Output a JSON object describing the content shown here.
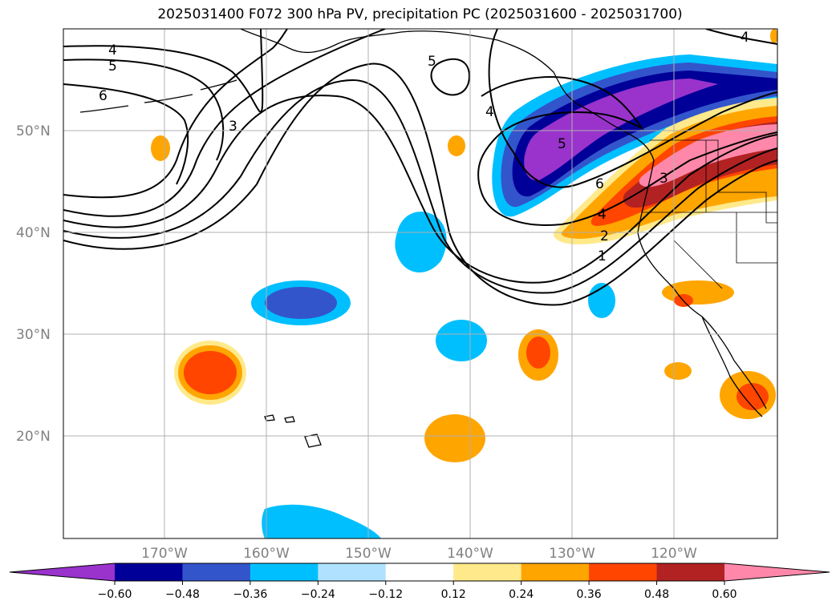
{
  "title": "2025031400 F072 300 hPa PV, precipitation PC (2025031600 - 2025031700)",
  "lat_labels": [
    {
      "text": "50°N",
      "lat": 50
    },
    {
      "text": "40°N",
      "lat": 40
    },
    {
      "text": "30°N",
      "lat": 30
    },
    {
      "text": "20°N",
      "lat": 20
    }
  ],
  "lon_labels": [
    {
      "text": "170°W",
      "lon": -170
    },
    {
      "text": "160°W",
      "lon": -160
    },
    {
      "text": "150°W",
      "lon": -150
    },
    {
      "text": "140°W",
      "lon": -140
    },
    {
      "text": "130°W",
      "lon": -130
    },
    {
      "text": "120°W",
      "lon": -120
    }
  ],
  "colorbar": {
    "colors": [
      "#9933cc",
      "#000099",
      "#3355cc",
      "#00bfff",
      "#b0e2ff",
      "#ffffff",
      "#ffe98a",
      "#ffa500",
      "#ff4500",
      "#b22222",
      "#ff88aa"
    ],
    "tick_labels": [
      "−0.60",
      "−0.48",
      "−0.36",
      "−0.24",
      "−0.12",
      "0.12",
      "0.24",
      "0.36",
      "0.48",
      "0.60"
    ]
  },
  "contour_labels": [
    "4",
    "5",
    "6",
    "3",
    "5",
    "4",
    "5",
    "6",
    "4",
    "2",
    "1",
    "3",
    "4"
  ]
}
